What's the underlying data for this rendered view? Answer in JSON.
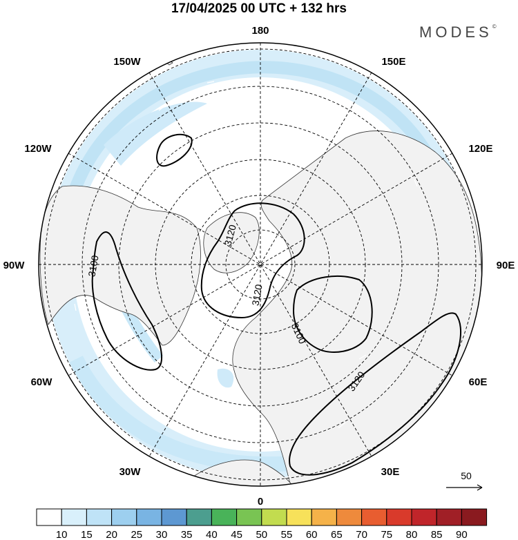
{
  "title": "17/04/2025  00 UTC  + 132 hrs",
  "brand": "MODES",
  "brand_mark": "©",
  "longitude_labels": {
    "top": "180",
    "bottom": "0",
    "left": "90W",
    "right": "90E",
    "upper_left_150": "150W",
    "upper_right_150": "150E",
    "upper_left_120": "120W",
    "upper_right_120": "120E",
    "lower_left_60": "60W",
    "lower_right_60": "60E",
    "lower_left_30": "30W",
    "lower_right_30": "30E"
  },
  "contours": {
    "c3100_west": "3100",
    "c3120_pole": "3120",
    "c3120_pole_lower": "3120",
    "c3100_europe": "3100",
    "c3120_east": "3120"
  },
  "wind_reference": {
    "label": "50"
  },
  "colorbar": {
    "ticks": [
      "10",
      "15",
      "20",
      "25",
      "30",
      "35",
      "40",
      "45",
      "50",
      "55",
      "60",
      "65",
      "70",
      "75",
      "80",
      "85",
      "90"
    ],
    "colors": [
      "#ffffff",
      "#d9f0fb",
      "#bfe3f7",
      "#9dcfef",
      "#79b4e3",
      "#5d98d2",
      "#4c9e8f",
      "#49b359",
      "#79c453",
      "#c2dc4f",
      "#f7e15a",
      "#f5b249",
      "#ee8a3c",
      "#e85d30",
      "#d93a2b",
      "#c0252a",
      "#a01f26",
      "#8a1a1f"
    ]
  }
}
